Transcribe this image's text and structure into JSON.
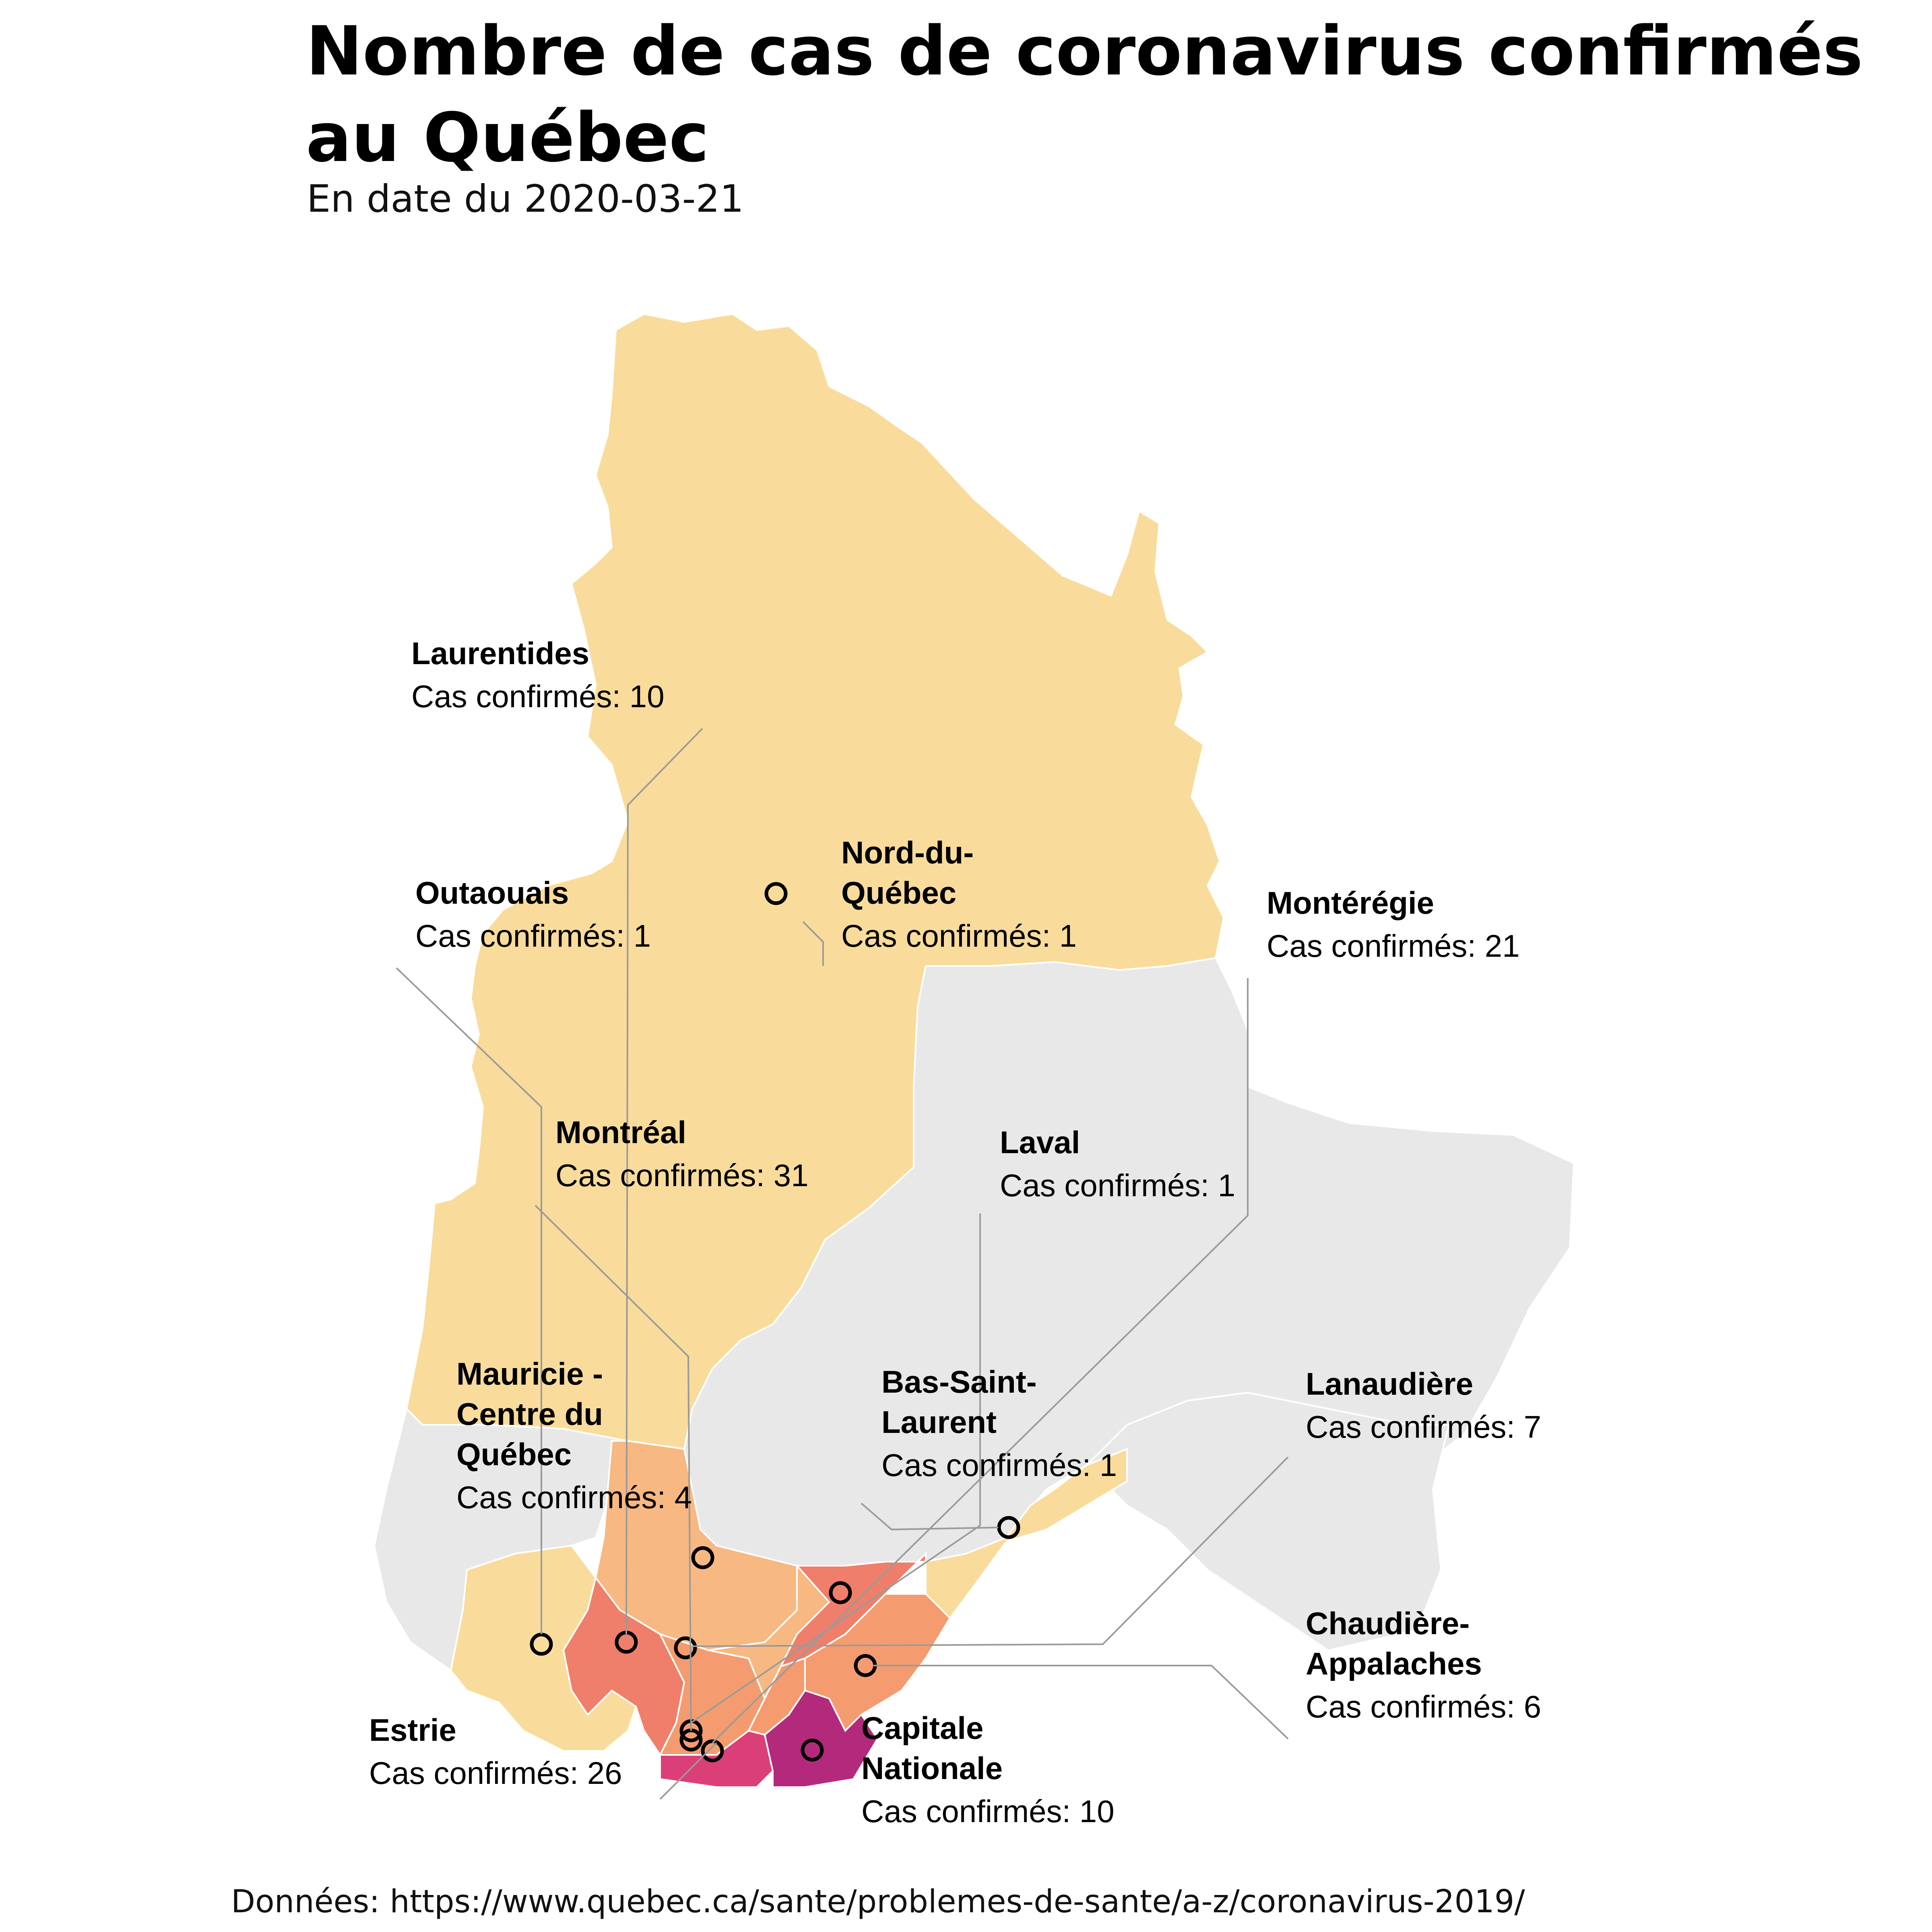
{
  "header": {
    "title": "Nombre de cas de coronavirus confirmés au Québec",
    "subtitle": "En date du 2020-03-21"
  },
  "footer": {
    "source": "Données: https://www.quebec.ca/sante/problemes-de-sante/a-z/coronavirus-2019/"
  },
  "map": {
    "colors": {
      "no_data": "#e8e8e8",
      "c1": "#f9dc9b",
      "c4": "#f7b882",
      "c6": "#f49c70",
      "c10": "#ef7f6a",
      "c26": "#db3f78",
      "c31": "#b32a7c"
    },
    "count_prefix": "Cas confirmés: ",
    "regions": [
      {
        "id": "laurentides",
        "name": "Laurentides",
        "cases": 10,
        "count_text": "Cas confirmés: 10"
      },
      {
        "id": "outaouais",
        "name": "Outaouais",
        "cases": 1,
        "count_text": "Cas confirmés: 1"
      },
      {
        "id": "nord-du-quebec",
        "name": "Nord-du-Québec",
        "name_lines": [
          "Nord-du-",
          "Québec"
        ],
        "cases": 1,
        "count_text": "Cas confirmés: 1"
      },
      {
        "id": "monteregie",
        "name": "Montérégie",
        "cases": 21,
        "count_text": "Cas confirmés: 21"
      },
      {
        "id": "montreal",
        "name": "Montréal",
        "cases": 31,
        "count_text": "Cas confirmés: 31"
      },
      {
        "id": "laval",
        "name": "Laval",
        "cases": 1,
        "count_text": "Cas confirmés: 1"
      },
      {
        "id": "mauricie",
        "name": "Mauricie - Centre du Québec",
        "name_lines": [
          "Mauricie -",
          "Centre du",
          "Québec"
        ],
        "cases": 4,
        "count_text": "Cas confirmés: 4"
      },
      {
        "id": "bas-saint-laurent",
        "name": "Bas-Saint-Laurent",
        "name_lines": [
          "Bas-Saint-",
          "Laurent"
        ],
        "cases": 1,
        "count_text": "Cas confirmés: 1"
      },
      {
        "id": "lanaudiere",
        "name": "Lanaudière",
        "cases": 7,
        "count_text": "Cas confirmés: 7"
      },
      {
        "id": "chaudiere-appalaches",
        "name": "Chaudière-Appalaches",
        "name_lines": [
          "Chaudière-",
          "Appalaches"
        ],
        "cases": 6,
        "count_text": "Cas confirmés: 6"
      },
      {
        "id": "estrie",
        "name": "Estrie",
        "cases": 26,
        "count_text": "Cas confirmés: 26"
      },
      {
        "id": "capitale-nationale",
        "name": "Capitale Nationale",
        "name_lines": [
          "Capitale",
          "Nationale"
        ],
        "cases": 10,
        "count_text": "Cas confirmés: 10"
      }
    ]
  }
}
